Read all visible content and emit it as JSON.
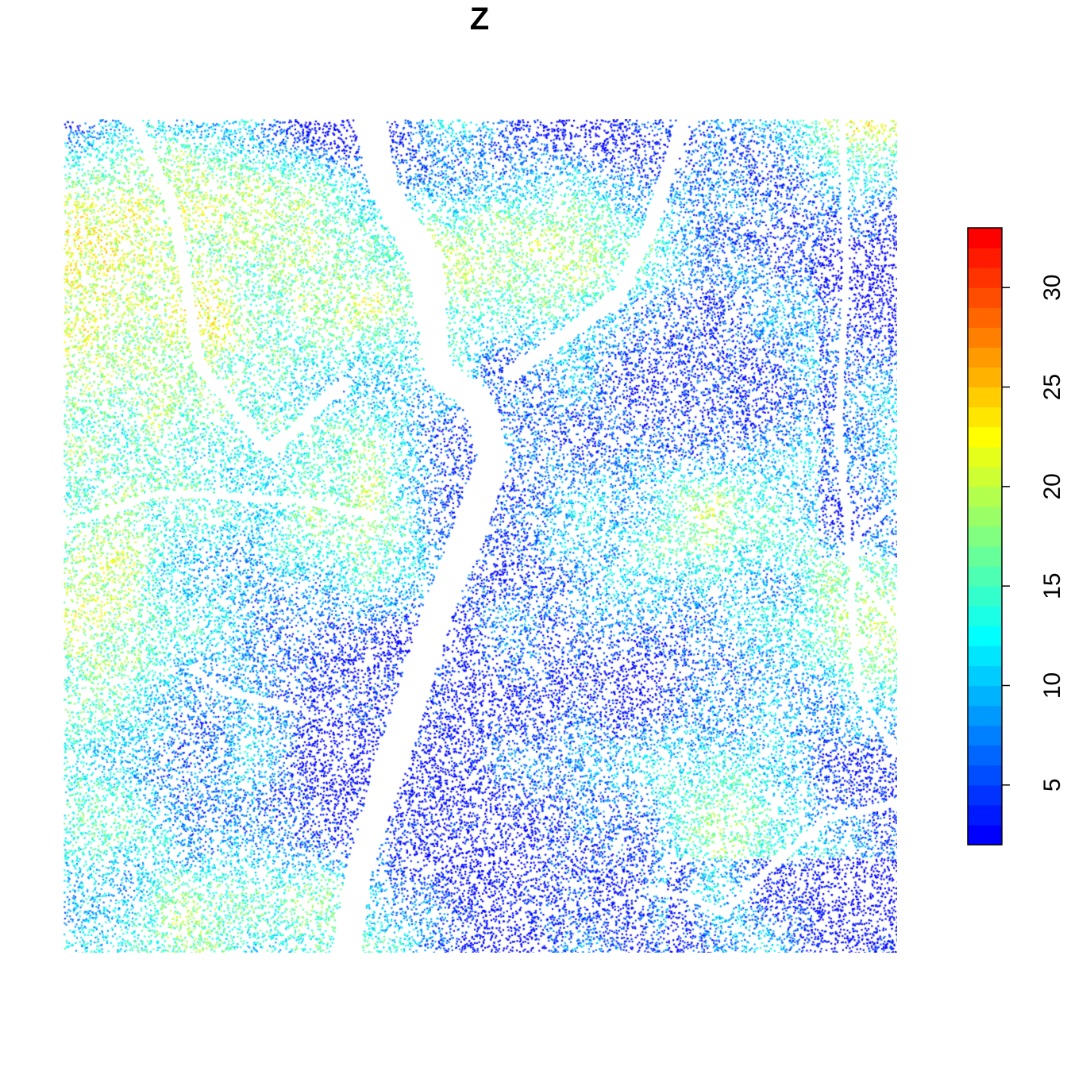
{
  "chart_data": {
    "type": "scatter",
    "title": "Z",
    "xlabel": "",
    "ylabel": "",
    "colorbar": {
      "label": "",
      "range": [
        2,
        33
      ],
      "ticks": [
        5,
        10,
        15,
        20,
        25,
        30
      ],
      "tick_labels": [
        "5",
        "10",
        "15",
        "20",
        "25",
        "30"
      ],
      "colors": [
        "#0000ff",
        "#0040ff",
        "#0080ff",
        "#00c0ff",
        "#00ffff",
        "#40ffbf",
        "#80ff80",
        "#c0ff40",
        "#ffff00",
        "#ffc000",
        "#ff8000",
        "#ff4000",
        "#ff0000"
      ]
    },
    "grid": false,
    "legend_position": "right",
    "x": [],
    "y": [],
    "z": []
  }
}
